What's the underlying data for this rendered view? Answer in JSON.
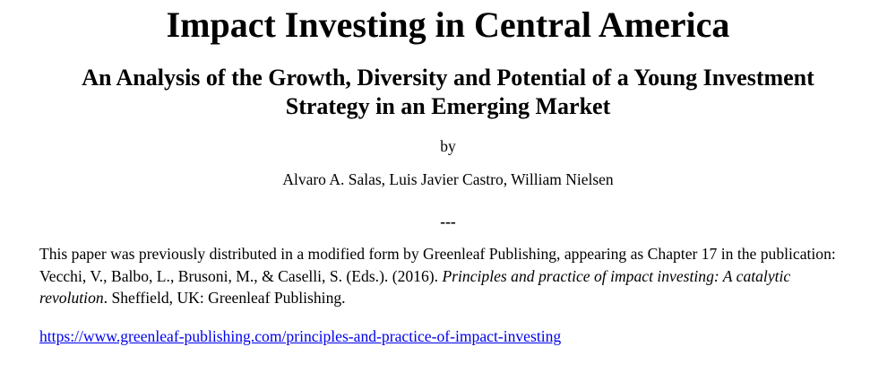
{
  "page": {
    "title": "Impact Investing in Central America",
    "subtitle_line1": "An Analysis of the Growth, Diversity and Potential of a Young Investment",
    "subtitle_line2": "Strategy in an Emerging Market",
    "byline_label": "by",
    "authors": "Alvaro A. Salas, Luis Javier Castro, William Nielsen",
    "separator": "---"
  },
  "citation": {
    "segments": [
      {
        "style": "normal",
        "text": "This paper was previously distributed in a modified form by Greenleaf Publishing, appearing as Chapter 17 in the publication: Vecchi, V., Balbo, L., Brusoni, M., & Caselli, S. (Eds.). (2016). "
      },
      {
        "style": "italic",
        "text": "Principles and practice of impact investing: A catalytic revolution"
      },
      {
        "style": "normal",
        "text": ". Sheffield, UK: Greenleaf Publishing."
      }
    ]
  },
  "link": {
    "text": "https://www.greenleaf-publishing.com/principles-and-practice-of-impact-investing",
    "href": "https://www.greenleaf-publishing.com/principles-and-practice-of-impact-investing",
    "color": "#0000EE"
  }
}
